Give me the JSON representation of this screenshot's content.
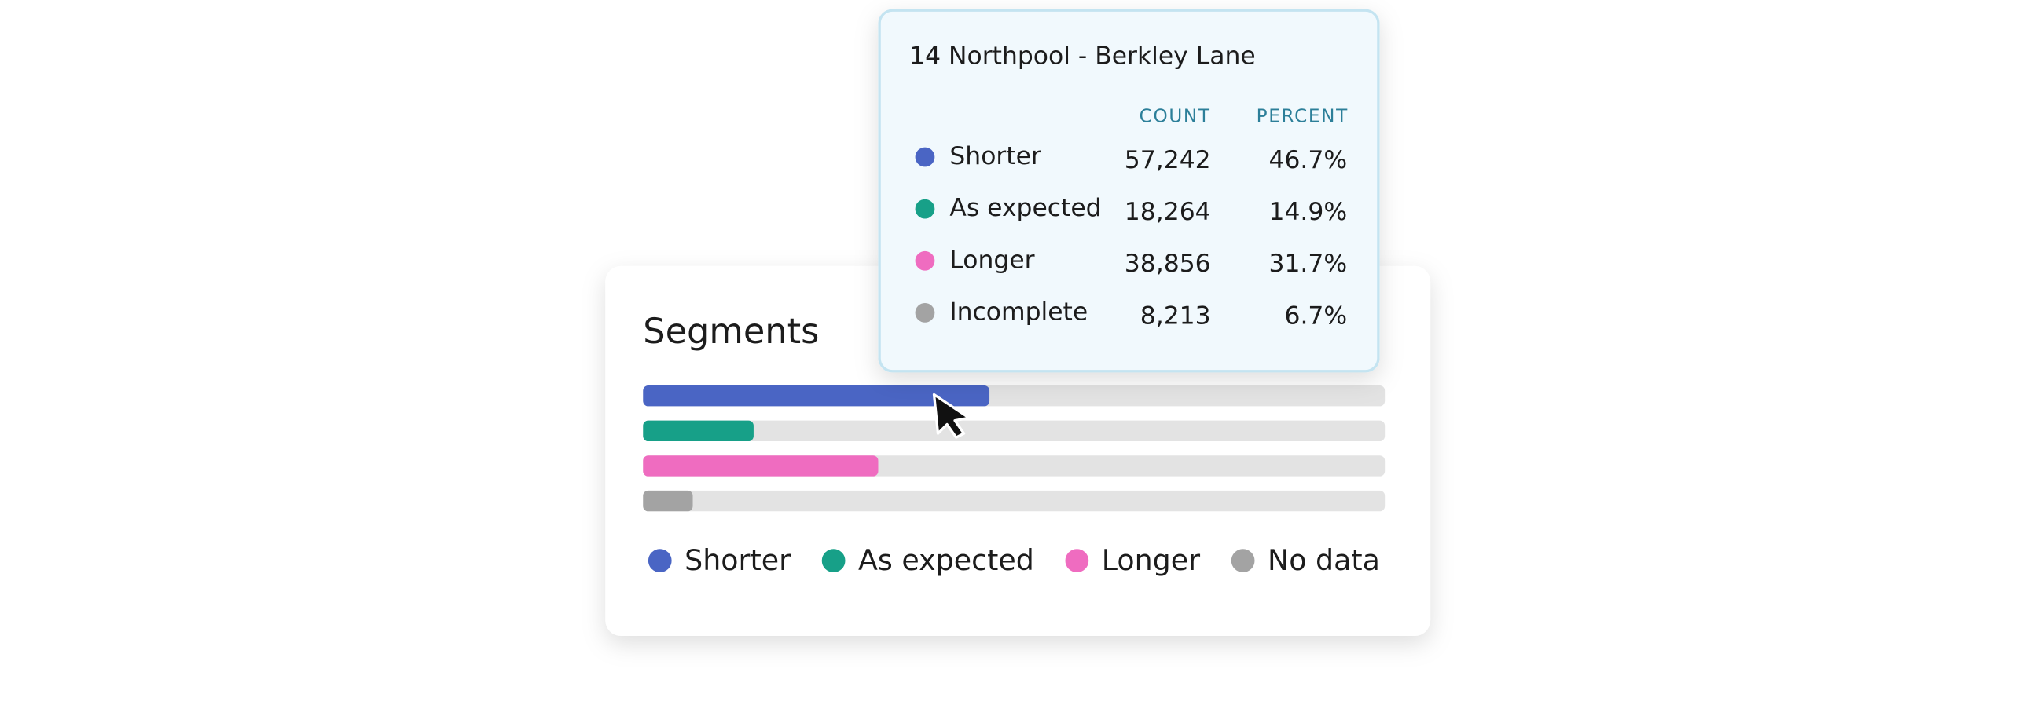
{
  "segments": {
    "title": "Segments",
    "xlim": [
      0,
      100
    ],
    "legend": [
      {
        "label": "Shorter",
        "color": "#4a65c4"
      },
      {
        "label": "As expected",
        "color": "#17a088"
      },
      {
        "label": "Longer",
        "color": "#ef6cc0"
      },
      {
        "label": "No data",
        "color": "#a3a3a3"
      }
    ]
  },
  "tooltip": {
    "title": "14 Northpool - Berkley Lane",
    "headers": [
      "COUNT",
      "PERCENT"
    ],
    "rows": [
      {
        "label": "Shorter",
        "count": "57,242",
        "percent": {
          "value": 46.7,
          "label": "46.7%"
        },
        "color": "#4a65c4"
      },
      {
        "label": "As expected",
        "count": "18,264",
        "percent": {
          "value": 14.9,
          "label": "14.9%"
        },
        "color": "#17a088"
      },
      {
        "label": "Longer",
        "count": "38,856",
        "percent": {
          "value": 31.7,
          "label": "31.7%"
        },
        "color": "#ef6cc0"
      },
      {
        "label": "Incomplete",
        "count": "8,213",
        "percent": {
          "value": 6.7,
          "label": "6.7%"
        },
        "color": "#a3a3a3"
      }
    ]
  }
}
